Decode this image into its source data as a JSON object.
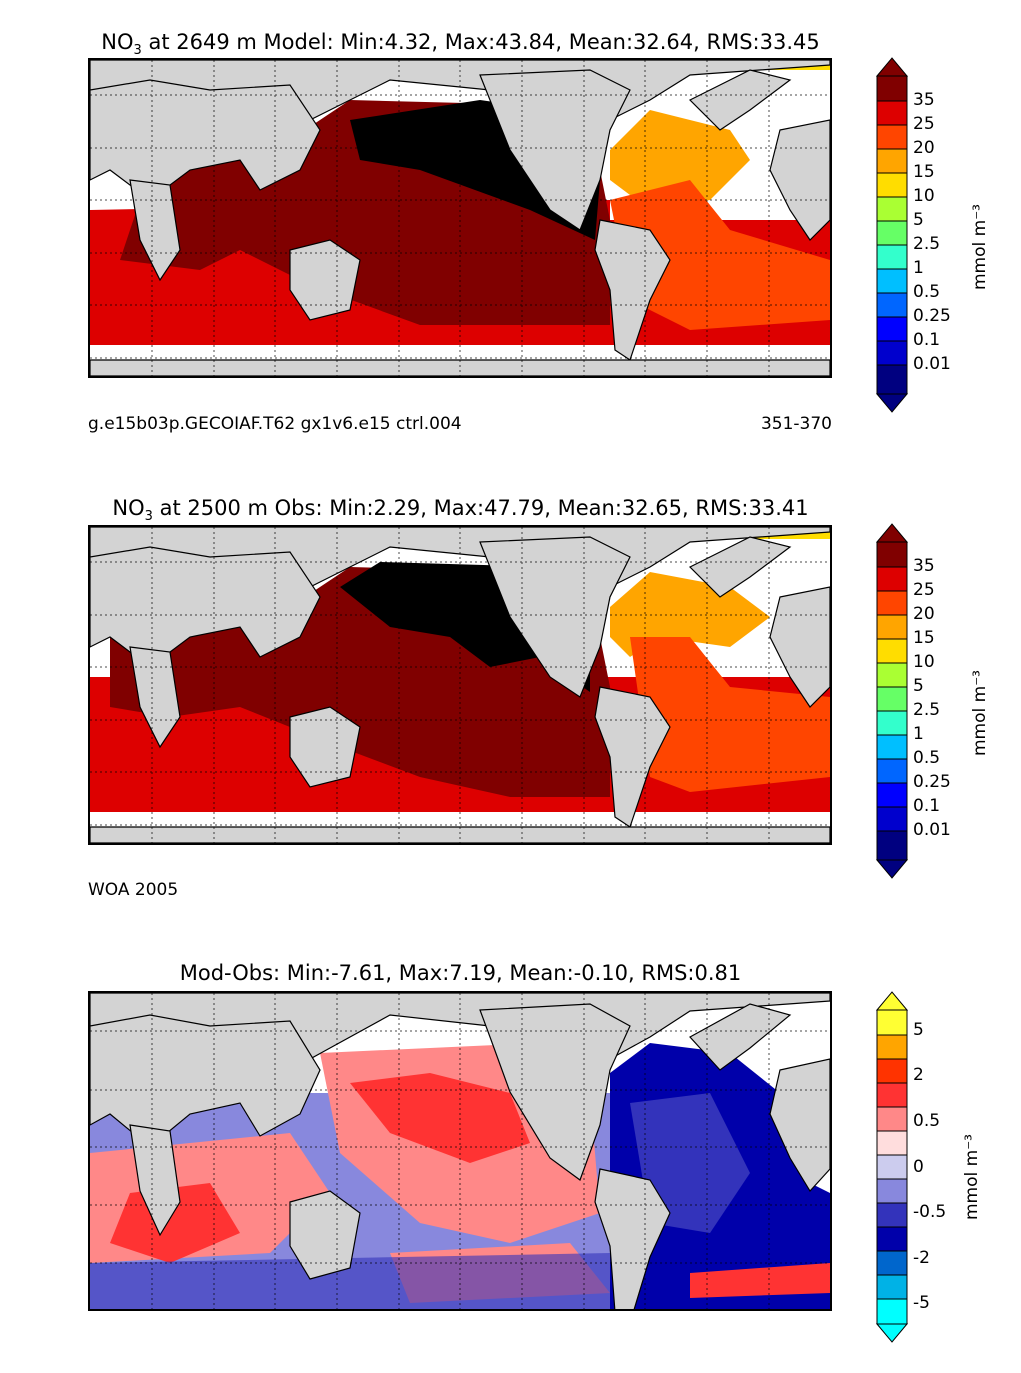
{
  "panels": [
    {
      "title_pre": "NO",
      "title_sub": "3",
      "title_post": " at 2649 m Model: Min:4.32, Max:43.84, Mean:32.64, RMS:33.45",
      "caption_left": "g.e15b03p.GECOIAF.T62 gx1v6.e15 ctrl.004",
      "caption_right": "351-370",
      "colorbar_unit": "mmol m⁻³",
      "colorbar_ticks": [
        "35",
        "25",
        "20",
        "15",
        "10",
        "5",
        "2.5",
        "1",
        "0.5",
        "0.25",
        "0.1",
        "0.01"
      ]
    },
    {
      "title_pre": "NO",
      "title_sub": "3",
      "title_post": " at 2500 m Obs: Min:2.29, Max:47.79, Mean:32.65, RMS:33.41",
      "caption_left": "WOA 2005",
      "caption_right": "",
      "colorbar_unit": "mmol m⁻³",
      "colorbar_ticks": [
        "35",
        "25",
        "20",
        "15",
        "10",
        "5",
        "2.5",
        "1",
        "0.5",
        "0.25",
        "0.1",
        "0.01"
      ]
    },
    {
      "title_pre": "Mod-Obs: Min:-7.61, Max:7.19, Mean:-0.10, RMS:0.81",
      "title_sub": "",
      "title_post": "",
      "caption_left": "",
      "caption_right": "",
      "colorbar_unit": "mmol m⁻³",
      "colorbar_ticks": [
        "5",
        "2",
        "0.5",
        "0",
        "-0.5",
        "-2",
        "-5"
      ]
    }
  ],
  "colors": {
    "land": "#d3d3d3",
    "nodata": "#ffffff",
    "abs_scale": [
      "#000080",
      "#0000cd",
      "#0000ff",
      "#0066ff",
      "#00bfff",
      "#33ffcc",
      "#66ff66",
      "#aaff33",
      "#ffdd00",
      "#ffa500",
      "#ff4500",
      "#dd0000",
      "#800000"
    ],
    "diff_scale": [
      "#00ffff",
      "#00b2e6",
      "#0066cc",
      "#0000aa",
      "#3333bb",
      "#8888dd",
      "#ccccee",
      "#ffdddd",
      "#ff8888",
      "#ff3333",
      "#ff3300",
      "#ffa500",
      "#ffff33"
    ]
  }
}
